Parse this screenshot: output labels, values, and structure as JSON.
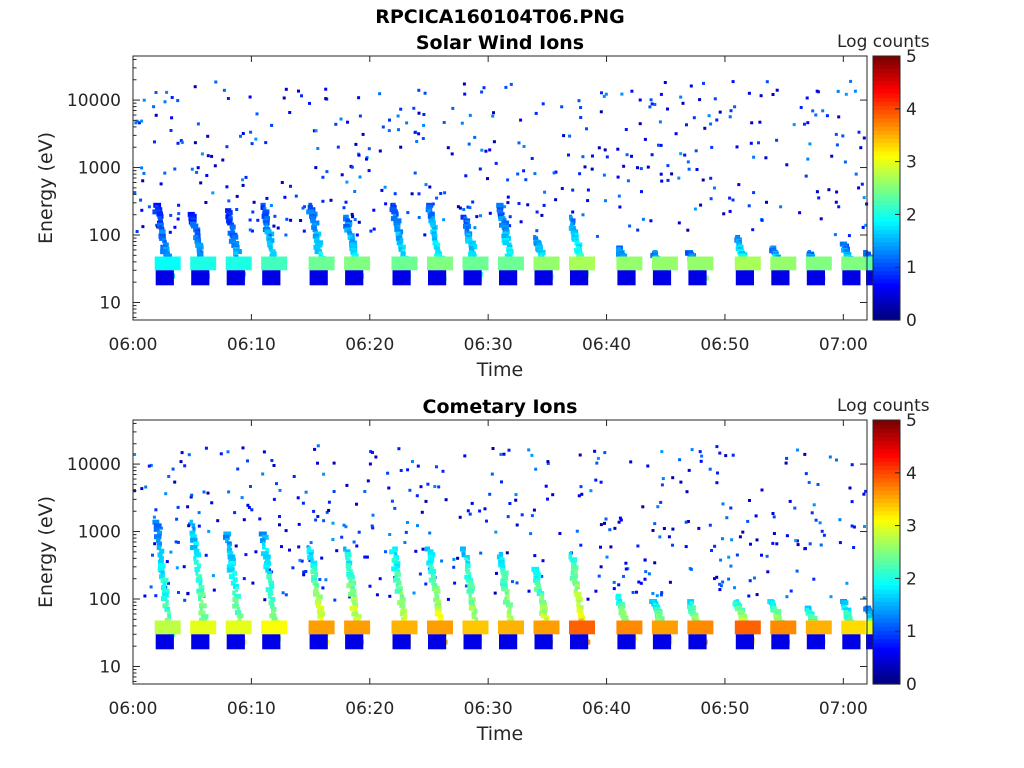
{
  "figure_title": "RPCICA160104T06.PNG",
  "chart_data": [
    {
      "type": "heatmap",
      "title": "Solar Wind Ions",
      "xlabel": "Time",
      "ylabel": "Energy (eV)",
      "x_ticks": [
        "06:00",
        "06:10",
        "06:20",
        "06:30",
        "06:40",
        "06:50",
        "07:00"
      ],
      "xlim": [
        "06:00",
        "07:02"
      ],
      "y_ticks": [
        "10",
        "100",
        "1000",
        "10000"
      ],
      "ylim": [
        5.5,
        45000
      ],
      "yscale": "log",
      "colorbar": {
        "label": "Log counts",
        "ticks": [
          "0",
          "1",
          "2",
          "3",
          "4",
          "5"
        ],
        "range": [
          0,
          5
        ],
        "colormap": "jet"
      },
      "bursts": [
        {
          "time": "06:02",
          "peak_energy": 300,
          "peak_log_counts": 1.9
        },
        {
          "time": "06:05",
          "peak_energy": 220,
          "peak_log_counts": 2.0
        },
        {
          "time": "06:08",
          "peak_energy": 250,
          "peak_log_counts": 2.0
        },
        {
          "time": "06:11",
          "peak_energy": 300,
          "peak_log_counts": 2.2
        },
        {
          "time": "06:15",
          "peak_energy": 300,
          "peak_log_counts": 2.4
        },
        {
          "time": "06:18",
          "peak_energy": 200,
          "peak_log_counts": 2.5
        },
        {
          "time": "06:22",
          "peak_energy": 300,
          "peak_log_counts": 2.4
        },
        {
          "time": "06:25",
          "peak_energy": 300,
          "peak_log_counts": 2.5
        },
        {
          "time": "06:28",
          "peak_energy": 200,
          "peak_log_counts": 2.4
        },
        {
          "time": "06:31",
          "peak_energy": 300,
          "peak_log_counts": 2.4
        },
        {
          "time": "06:34",
          "peak_energy": 100,
          "peak_log_counts": 2.6
        },
        {
          "time": "06:37",
          "peak_energy": 200,
          "peak_log_counts": 2.7
        },
        {
          "time": "06:41",
          "peak_energy": 70,
          "peak_log_counts": 2.6
        },
        {
          "time": "06:44",
          "peak_energy": 60,
          "peak_log_counts": 2.6
        },
        {
          "time": "06:47",
          "peak_energy": 60,
          "peak_log_counts": 2.6
        },
        {
          "time": "06:51",
          "peak_energy": 100,
          "peak_log_counts": 2.7
        },
        {
          "time": "06:54",
          "peak_energy": 70,
          "peak_log_counts": 2.6
        },
        {
          "time": "06:57",
          "peak_energy": 60,
          "peak_log_counts": 2.5
        },
        {
          "time": "07:00",
          "peak_energy": 80,
          "peak_log_counts": 2.5
        },
        {
          "time": "07:02",
          "peak_energy": 60,
          "peak_log_counts": 2.3
        }
      ],
      "background_noise": true
    },
    {
      "type": "heatmap",
      "title": "Cometary Ions",
      "xlabel": "Time",
      "ylabel": "Energy (eV)",
      "x_ticks": [
        "06:00",
        "06:10",
        "06:20",
        "06:30",
        "06:40",
        "06:50",
        "07:00"
      ],
      "xlim": [
        "06:00",
        "07:02"
      ],
      "y_ticks": [
        "10",
        "100",
        "1000",
        "10000"
      ],
      "ylim": [
        5.5,
        45000
      ],
      "yscale": "log",
      "colorbar": {
        "label": "Log counts",
        "ticks": [
          "0",
          "1",
          "2",
          "3",
          "4",
          "5"
        ],
        "range": [
          0,
          5
        ],
        "colormap": "jet"
      },
      "bursts": [
        {
          "time": "06:02",
          "peak_energy": 1500,
          "peak_log_counts": 2.8
        },
        {
          "time": "06:05",
          "peak_energy": 1500,
          "peak_log_counts": 3.0
        },
        {
          "time": "06:08",
          "peak_energy": 1000,
          "peak_log_counts": 3.0
        },
        {
          "time": "06:11",
          "peak_energy": 1000,
          "peak_log_counts": 3.1
        },
        {
          "time": "06:15",
          "peak_energy": 600,
          "peak_log_counts": 3.6
        },
        {
          "time": "06:18",
          "peak_energy": 600,
          "peak_log_counts": 3.6
        },
        {
          "time": "06:22",
          "peak_energy": 600,
          "peak_log_counts": 3.5
        },
        {
          "time": "06:25",
          "peak_energy": 600,
          "peak_log_counts": 3.6
        },
        {
          "time": "06:28",
          "peak_energy": 600,
          "peak_log_counts": 3.4
        },
        {
          "time": "06:31",
          "peak_energy": 500,
          "peak_log_counts": 3.5
        },
        {
          "time": "06:34",
          "peak_energy": 300,
          "peak_log_counts": 3.6
        },
        {
          "time": "06:37",
          "peak_energy": 500,
          "peak_log_counts": 3.9
        },
        {
          "time": "06:41",
          "peak_energy": 120,
          "peak_log_counts": 3.7
        },
        {
          "time": "06:44",
          "peak_energy": 100,
          "peak_log_counts": 3.6
        },
        {
          "time": "06:47",
          "peak_energy": 100,
          "peak_log_counts": 3.7
        },
        {
          "time": "06:51",
          "peak_energy": 100,
          "peak_log_counts": 3.9
        },
        {
          "time": "06:54",
          "peak_energy": 100,
          "peak_log_counts": 3.7
        },
        {
          "time": "06:57",
          "peak_energy": 80,
          "peak_log_counts": 3.5
        },
        {
          "time": "07:00",
          "peak_energy": 100,
          "peak_log_counts": 3.3
        },
        {
          "time": "07:02",
          "peak_energy": 80,
          "peak_log_counts": 3.0
        }
      ],
      "background_noise": true
    }
  ]
}
